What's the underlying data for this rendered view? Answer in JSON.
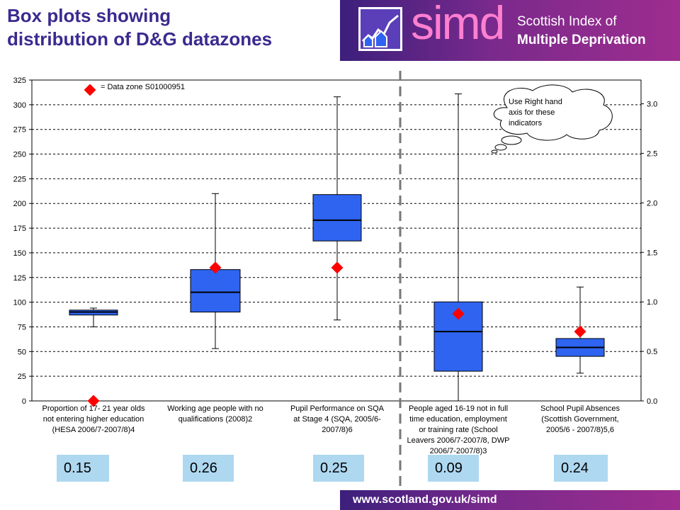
{
  "header": {
    "title_line1": "Box plots showing",
    "title_line2": "distribution of D&G datazones",
    "brand_word": "simd",
    "brand_line1": "Scottish Index of",
    "brand_line2": "Multiple Deprivation"
  },
  "footer": {
    "url": "www.scotland.gov.uk/simd"
  },
  "colors": {
    "title": "#3b2a8f",
    "box": "#2e64f0",
    "marker": "#ff0000",
    "banner_start": "#3c1f7c",
    "banner_end": "#9e2d8f",
    "corr_bg": "#add8f0"
  },
  "callout": {
    "lines": [
      "Use Right hand",
      "axis for these",
      "indicators"
    ]
  },
  "correlations": [
    "0.15",
    "0.26",
    "0.25",
    "0.09",
    "0.24"
  ],
  "chart_data": {
    "type": "box",
    "left_axis": {
      "min": 0,
      "max": 325,
      "ticks": [
        0,
        25,
        50,
        75,
        100,
        125,
        150,
        175,
        200,
        225,
        250,
        275,
        300,
        325
      ]
    },
    "right_axis": {
      "min": 0,
      "max": 3.24,
      "ticks": [
        "0.0",
        "0.5",
        "1.0",
        "1.5",
        "2.0",
        "2.5",
        "3.0"
      ],
      "tick_values": [
        0,
        0.5,
        1.0,
        1.5,
        2.0,
        2.5,
        3.0
      ]
    },
    "grid": "dashed horizontal",
    "legend": {
      "text": "= Data zone S01000951",
      "placement": "top-left"
    },
    "categories": [
      {
        "lines": [
          "Proportion of 17- 21 year olds",
          "not entering higher education",
          "(HESA 2006/7-2007/8)4"
        ],
        "axis": "left",
        "min": 75,
        "q1": 87,
        "median": 90,
        "q3": 92,
        "max": 94,
        "marker": 0
      },
      {
        "lines": [
          "Working age people with no",
          "qualifications (2008)2"
        ],
        "axis": "left",
        "min": 53,
        "q1": 90,
        "median": 110,
        "q3": 133,
        "max": 210,
        "marker": 135
      },
      {
        "lines": [
          "Pupil Performance on SQA",
          "at Stage 4 (SQA, 2005/6-",
          "2007/8)6"
        ],
        "axis": "left",
        "min": 82,
        "q1": 162,
        "median": 183,
        "q3": 209,
        "max": 308,
        "marker": 135
      },
      {
        "lines": [
          "People aged 16-19 not in full",
          "time education, employment",
          "or training rate (School",
          "Leavers 2006/7-2007/8, DWP",
          "2006/7-2007/8)3"
        ],
        "axis": "right",
        "min": 0.0,
        "q1": 0.3,
        "median": 0.7,
        "q3": 1.0,
        "max": 3.1,
        "marker": 0.88
      },
      {
        "lines": [
          "School Pupil Absences",
          "(Scottish Government,",
          "2005/6 - 2007/8)5,6"
        ],
        "axis": "right",
        "min": 0.28,
        "q1": 0.45,
        "median": 0.54,
        "q3": 0.63,
        "max": 1.15,
        "marker": 0.7
      }
    ],
    "legend_marker_value": 315
  }
}
